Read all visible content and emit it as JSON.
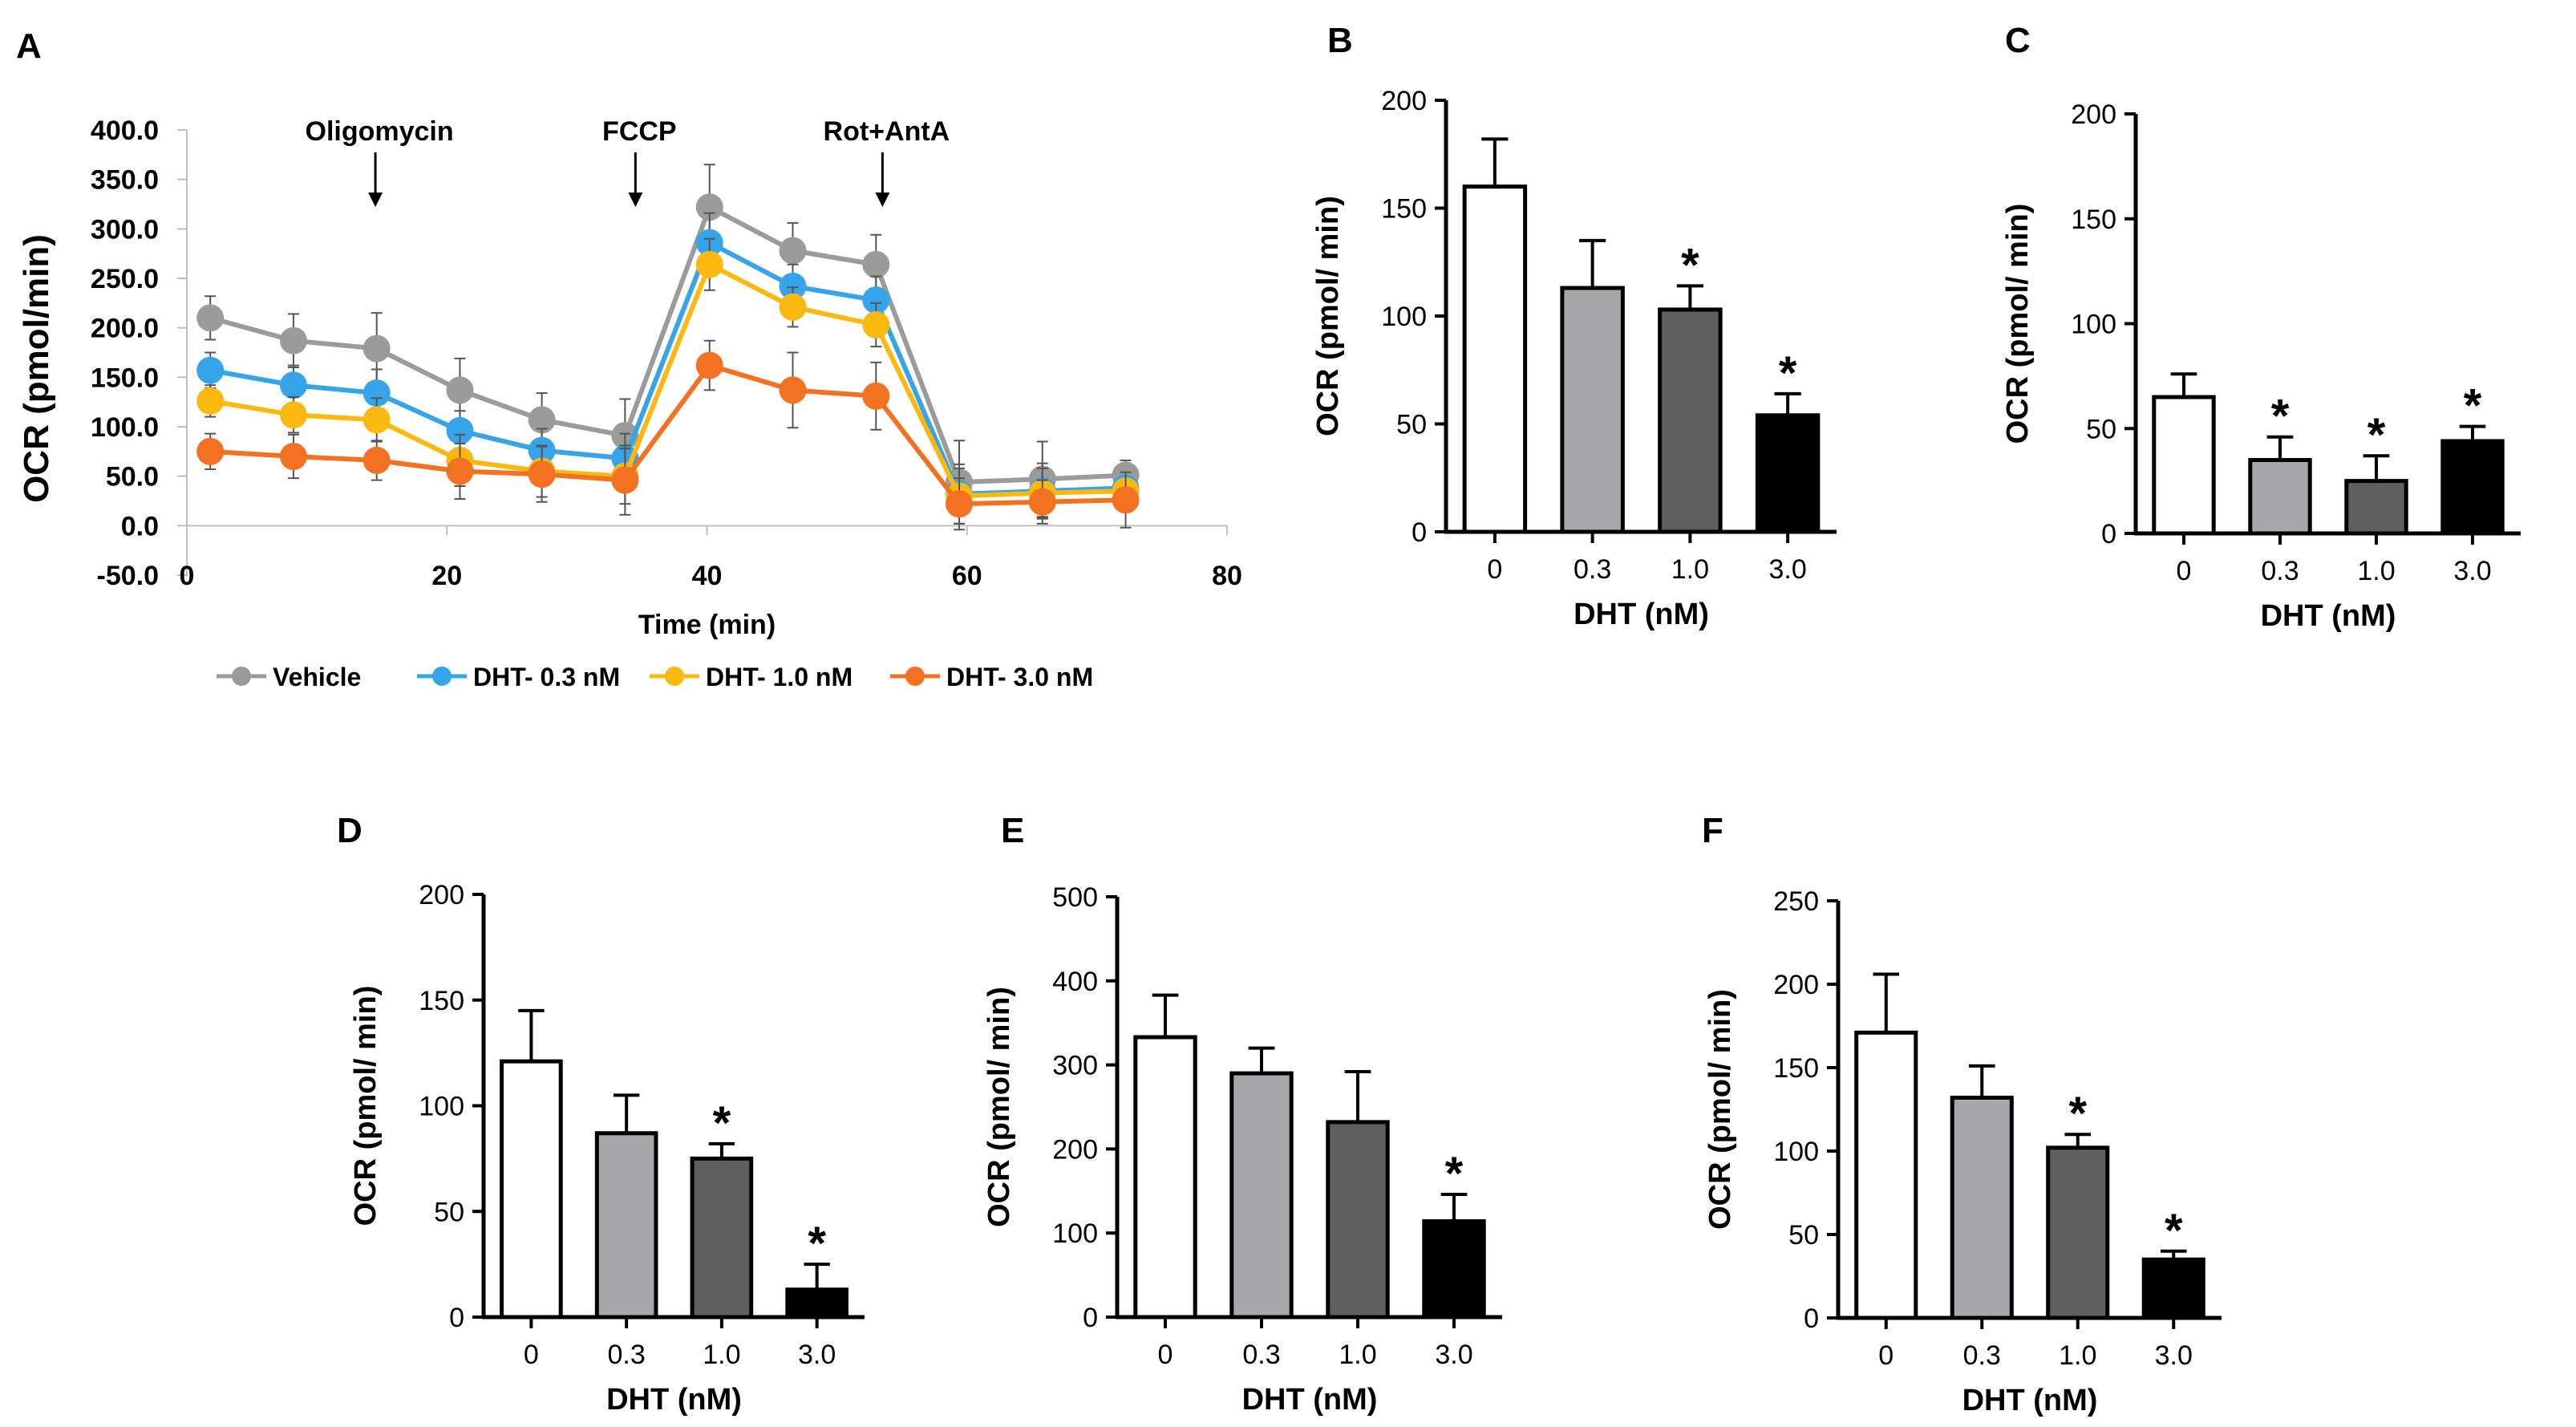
{
  "colors": {
    "Vehicle": "#9b9b9b",
    "DHT- 0.3 nM": "#35a4e8",
    "DHT- 1.0 nM": "#fbb811",
    "DHT- 3.0 nM": "#f37121",
    "bar_fills": [
      "#ffffff",
      "#a7a7aa",
      "#5f5f5f",
      "#000000"
    ]
  },
  "chart_data": [
    {
      "panel": "A",
      "type": "line",
      "title": "",
      "xlabel": "Time (min)",
      "ylabel": "OCR (pmol/min)",
      "xlim": [
        0,
        80
      ],
      "ylim": [
        -50,
        400
      ],
      "xticks": [
        0,
        20,
        40,
        60,
        80
      ],
      "xtick_labels": [
        "0",
        "20",
        "40",
        "60",
        "80"
      ],
      "yticks": [
        -50,
        0,
        50,
        100,
        150,
        200,
        250,
        300,
        350,
        400
      ],
      "ytick_labels": [
        "-50.0",
        "0.0",
        "50.0",
        "100.0",
        "150.0",
        "200.0",
        "250.0",
        "300.0",
        "350.0",
        "400.0"
      ],
      "annotations": [
        {
          "text": "Oligomycin",
          "x": 14.5
        },
        {
          "text": "FCCP",
          "x": 34.5
        },
        {
          "text": "Rot+AntA",
          "x": 53.5
        }
      ],
      "legend": "bottom",
      "x": [
        1.8,
        8.2,
        14.6,
        21.0,
        27.3,
        33.7,
        40.2,
        46.6,
        53.0,
        59.4,
        65.8,
        72.2
      ],
      "series": [
        {
          "name": "Vehicle",
          "values": [
            210,
            187,
            179,
            137,
            107,
            91,
            322,
            278,
            264,
            44,
            47,
            51
          ],
          "errors": [
            22,
            27,
            36,
            32,
            27,
            37,
            43,
            28,
            30,
            42,
            38,
            15
          ]
        },
        {
          "name": "DHT- 0.3 nM",
          "values": [
            157,
            142,
            134,
            96,
            76,
            68,
            286,
            242,
            228,
            32,
            35,
            38
          ],
          "errors": [
            18,
            20,
            24,
            20,
            22,
            25,
            30,
            22,
            24,
            30,
            28,
            12
          ]
        },
        {
          "name": "DHT- 1.0 nM",
          "values": [
            126,
            112,
            107,
            66,
            55,
            50,
            264,
            221,
            203,
            30,
            33,
            35
          ],
          "errors": [
            16,
            18,
            22,
            26,
            26,
            28,
            26,
            20,
            22,
            28,
            25,
            11
          ]
        },
        {
          "name": "DHT- 3.0 nM",
          "values": [
            75,
            70,
            66,
            55,
            52,
            46,
            162,
            137,
            131,
            22,
            24,
            26
          ],
          "errors": [
            18,
            22,
            20,
            28,
            28,
            35,
            25,
            38,
            34,
            26,
            22,
            28
          ]
        }
      ]
    },
    {
      "panel": "B",
      "type": "bar",
      "xlabel": "DHT (nM)",
      "ylabel": "OCR (pmol/ min)",
      "categories": [
        "0",
        "0.3",
        "1.0",
        "3.0"
      ],
      "values": [
        160,
        113,
        103,
        54
      ],
      "errors": [
        22,
        22,
        11,
        10
      ],
      "significant": [
        false,
        false,
        true,
        true
      ],
      "ylim": [
        0,
        200
      ],
      "yticks": [
        0,
        50,
        100,
        150,
        200
      ]
    },
    {
      "panel": "C",
      "type": "bar",
      "xlabel": "DHT (nM)",
      "ylabel": "OCR (pmol/ min)",
      "categories": [
        "0",
        "0.3",
        "1.0",
        "3.0"
      ],
      "values": [
        65,
        35,
        25,
        44
      ],
      "errors": [
        11,
        11,
        12,
        7
      ],
      "significant": [
        false,
        true,
        true,
        true
      ],
      "ylim": [
        0,
        200
      ],
      "yticks": [
        0,
        50,
        100,
        150,
        200
      ]
    },
    {
      "panel": "D",
      "type": "bar",
      "xlabel": "DHT (nM)",
      "ylabel": "OCR (pmol/ min)",
      "categories": [
        "0",
        "0.3",
        "1.0",
        "3.0"
      ],
      "values": [
        121,
        87,
        75,
        13
      ],
      "errors": [
        24,
        18,
        7,
        12
      ],
      "significant": [
        false,
        false,
        true,
        true
      ],
      "ylim": [
        0,
        200
      ],
      "yticks": [
        0,
        50,
        100,
        150,
        200
      ]
    },
    {
      "panel": "E",
      "type": "bar",
      "xlabel": "DHT (nM)",
      "ylabel": "OCR (pmol/ min)",
      "categories": [
        "0",
        "0.3",
        "1.0",
        "3.0"
      ],
      "values": [
        333,
        290,
        232,
        114
      ],
      "errors": [
        50,
        30,
        60,
        32
      ],
      "significant": [
        false,
        false,
        false,
        true
      ],
      "ylim": [
        0,
        500
      ],
      "yticks": [
        0,
        100,
        200,
        300,
        400,
        500
      ]
    },
    {
      "panel": "F",
      "type": "bar",
      "xlabel": "DHT (nM)",
      "ylabel": "OCR (pmol/ min)",
      "categories": [
        "0",
        "0.3",
        "1.0",
        "3.0"
      ],
      "values": [
        171,
        132,
        102,
        35
      ],
      "errors": [
        35,
        19,
        8,
        5
      ],
      "significant": [
        false,
        false,
        true,
        true
      ],
      "ylim": [
        0,
        250
      ],
      "yticks": [
        0,
        50,
        100,
        150,
        200,
        250
      ]
    }
  ]
}
